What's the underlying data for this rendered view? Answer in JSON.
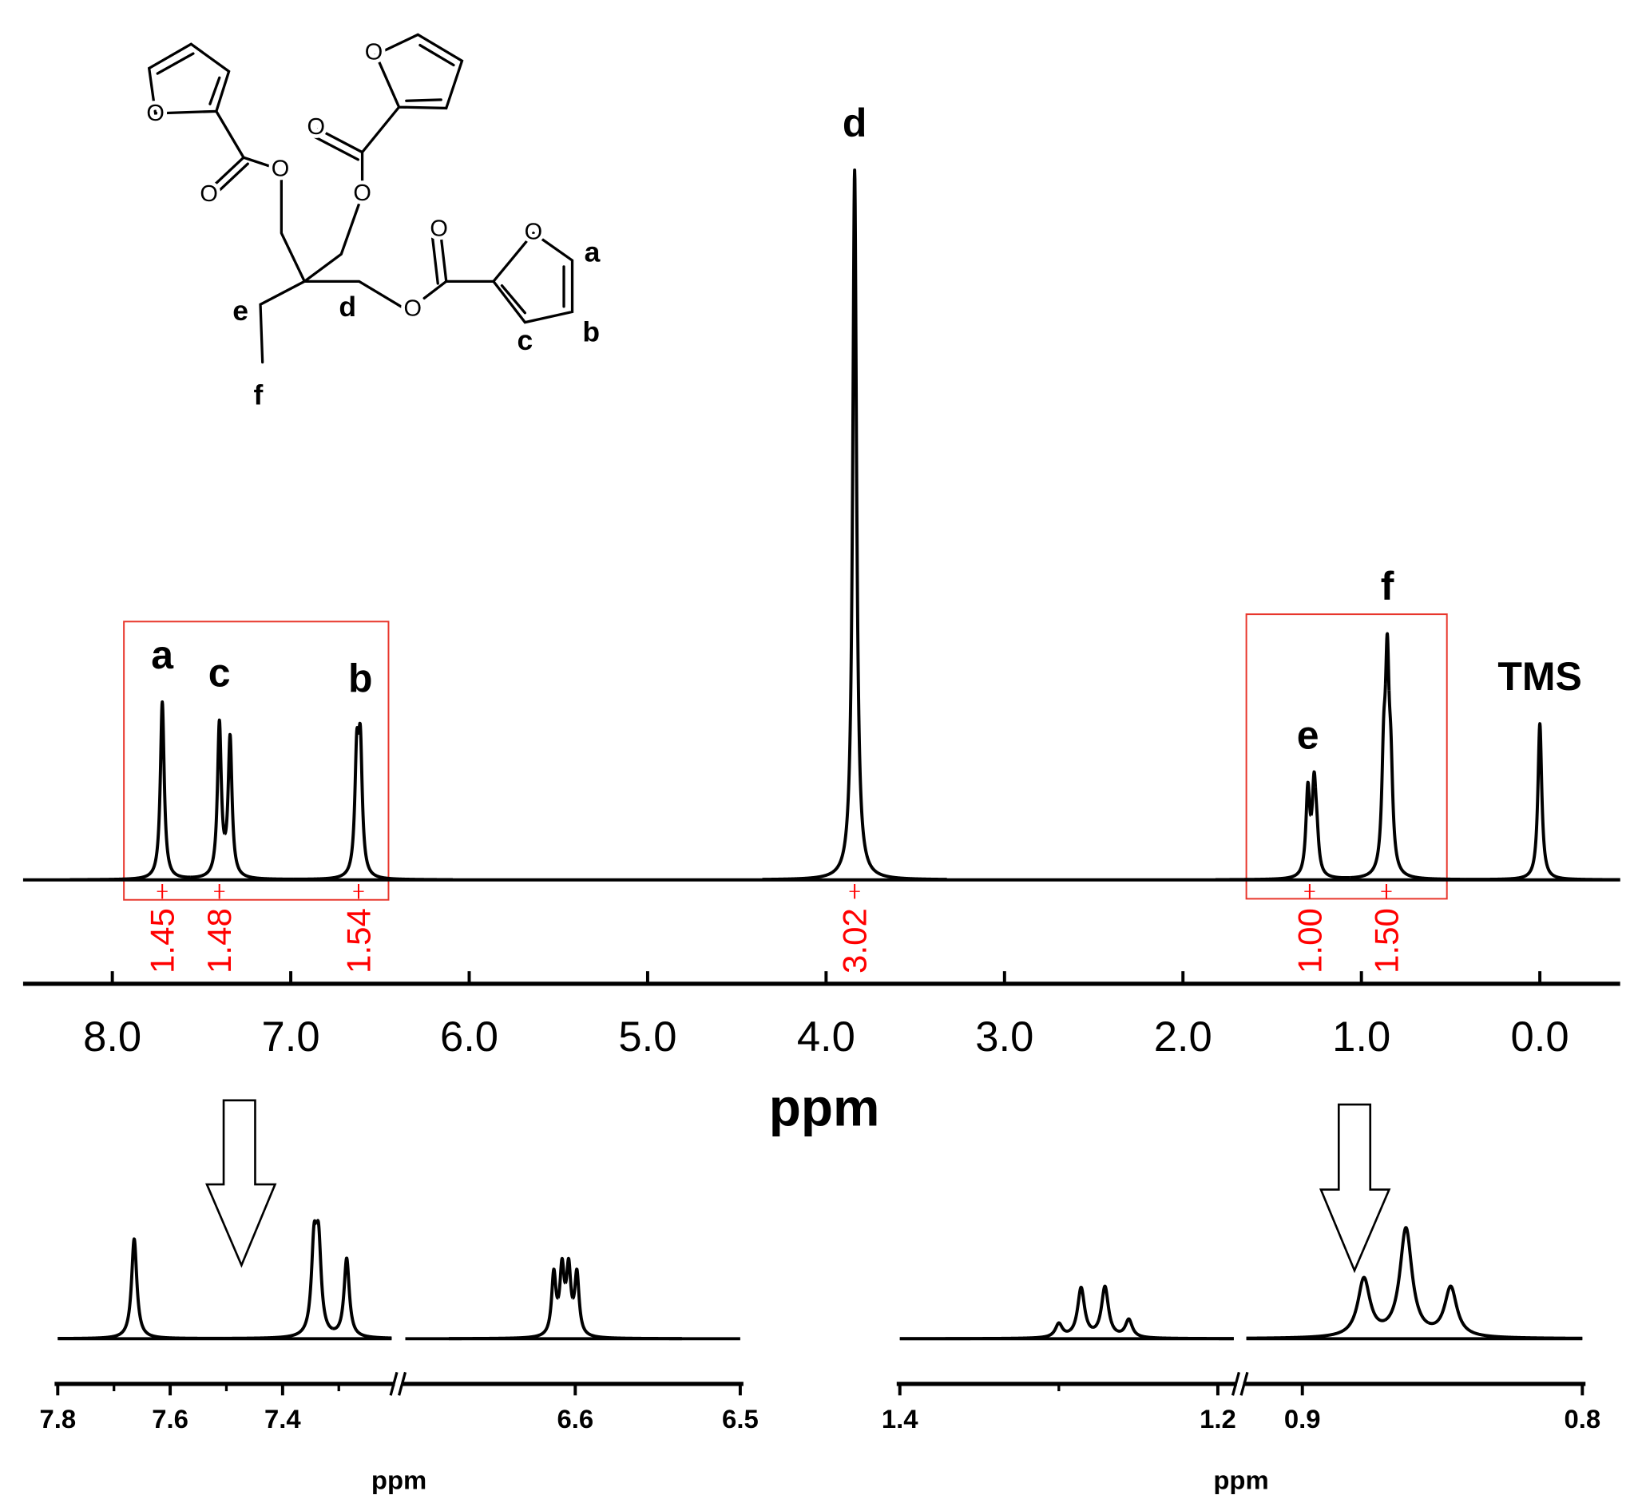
{
  "chart_data": [
    {
      "type": "nmr-spectrum",
      "xlabel": "ppm",
      "color": "#000000",
      "integral_color": "#ff0000",
      "xlim": [
        8.5,
        -0.45
      ],
      "xticks": [
        {
          "value": 8,
          "label": "8.0"
        },
        {
          "value": 7,
          "label": "7.0"
        },
        {
          "value": 6,
          "label": "6.0"
        },
        {
          "value": 5,
          "label": "5.0"
        },
        {
          "value": 4,
          "label": "4.0"
        },
        {
          "value": 3,
          "label": "3.0"
        },
        {
          "value": 2,
          "label": "2.0"
        },
        {
          "value": 1,
          "label": "1.0"
        },
        {
          "value": 0,
          "label": "0.0"
        }
      ],
      "peaks": [
        {
          "x": 7.72,
          "height": 25,
          "label": "a"
        },
        {
          "x": 7.4,
          "height": 21.6,
          "label": "c"
        },
        {
          "x": 7.34,
          "height": 19.5
        },
        {
          "x": 6.63,
          "height": 16
        },
        {
          "x": 6.61,
          "height": 17,
          "label": "b"
        },
        {
          "x": 3.84,
          "height": 100,
          "label": "d"
        },
        {
          "x": 1.3,
          "height": 12,
          "label": "e"
        },
        {
          "x": 1.265,
          "height": 12
        },
        {
          "x": 1.25,
          "height": 4
        },
        {
          "x": 0.875,
          "height": 14
        },
        {
          "x": 0.855,
          "height": 27,
          "label": "f"
        },
        {
          "x": 0.835,
          "height": 12
        },
        {
          "x": 0,
          "height": 22,
          "label": "TMS"
        }
      ],
      "integrals": {
        "x": [
          7.72,
          7.4,
          6.62,
          3.84,
          1.29,
          0.86
        ],
        "values": [
          1.45,
          1.48,
          1.54,
          3.02,
          1,
          1.5
        ],
        "value_labels": [
          "1.45",
          "1.48",
          "1.54",
          "3.02",
          "1.00",
          "1.50"
        ]
      }
    },
    {
      "type": "nmr-inset",
      "xlabel": "ppm",
      "color": "#000000",
      "segments": [
        {
          "xlim": [
            7.8,
            7.206
          ],
          "xticks": [
            7.8,
            7.6,
            7.4
          ],
          "minor_xticks": [
            7.7,
            7.5,
            7.3
          ],
          "peaks": [
            {
              "x": 7.664,
              "height": 95
            },
            {
              "x": 7.344,
              "height": 82
            },
            {
              "x": 7.336,
              "height": 82
            },
            {
              "x": 7.286,
              "height": 75
            }
          ]
        },
        {
          "xlim": [
            6.703,
            6.5
          ],
          "xticks": [
            6.6,
            6.5
          ],
          "peaks": [
            {
              "x": 6.613,
              "height": 58
            },
            {
              "x": 6.608,
              "height": 61
            },
            {
              "x": 6.604,
              "height": 61
            },
            {
              "x": 6.599,
              "height": 58
            }
          ]
        }
      ]
    },
    {
      "type": "nmr-inset",
      "xlabel": "ppm",
      "color": "#000000",
      "segments": [
        {
          "xlim": [
            1.4,
            1.19
          ],
          "xticks": [
            1.4,
            1.2
          ],
          "minor_xticks": [
            1.3
          ],
          "peaks": [
            {
              "x": 1.3,
              "height": 13
            },
            {
              "x": 1.286,
              "height": 47
            },
            {
              "x": 1.271,
              "height": 48
            },
            {
              "x": 1.256,
              "height": 17
            }
          ]
        },
        {
          "xlim": [
            0.92,
            0.8
          ],
          "xticks": [
            0.9,
            0.8
          ],
          "peaks": [
            {
              "x": 0.878,
              "height": 55
            },
            {
              "x": 0.863,
              "height": 103
            },
            {
              "x": 0.847,
              "height": 47
            }
          ]
        }
      ]
    }
  ],
  "structure": {
    "atom_labels": [
      "O",
      "O",
      "O",
      "O",
      "O",
      "O",
      "O",
      "O",
      "O"
    ],
    "position_labels": [
      "a",
      "b",
      "c",
      "d",
      "e",
      "f"
    ]
  }
}
